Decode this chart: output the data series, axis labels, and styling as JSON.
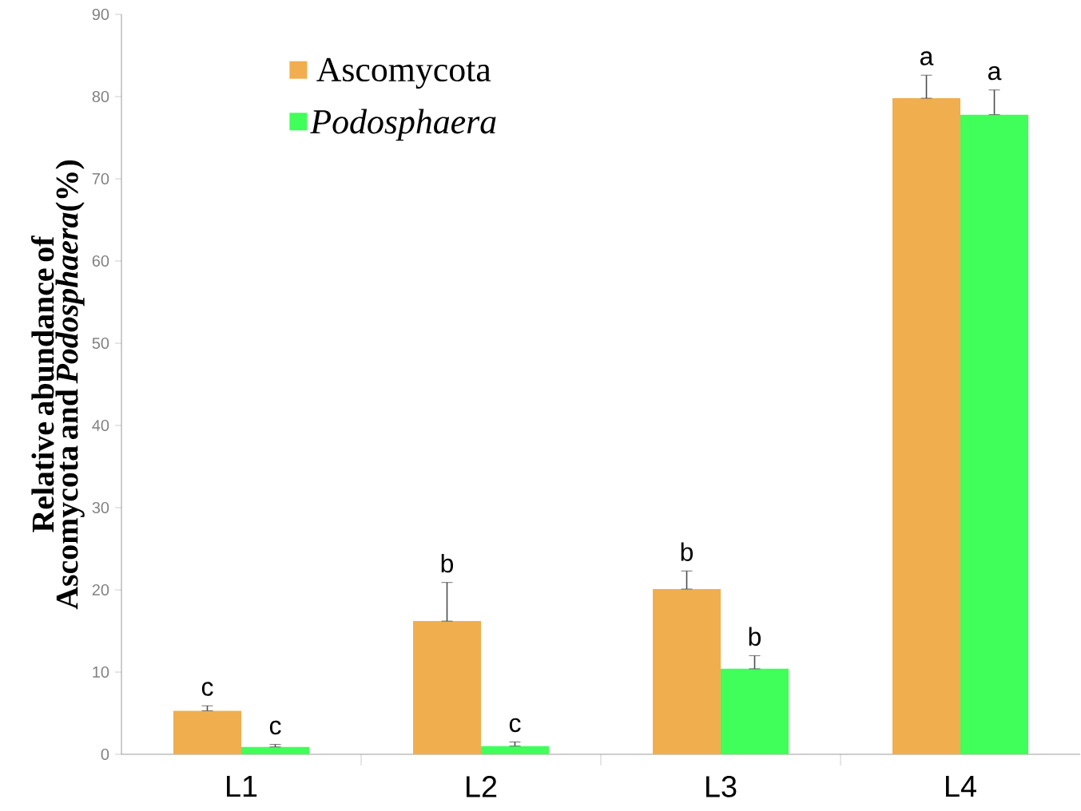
{
  "chart_data": {
    "type": "bar",
    "ylabel": "Relative abundance of Ascomycota and *Podosphaera*(%)",
    "categories": [
      "L1",
      "L2",
      "L3",
      "L4"
    ],
    "series": [
      {
        "name": "Ascomycota",
        "color": "#f0ae4e",
        "values": [
          5.3,
          16.2,
          20.1,
          79.8
        ],
        "errors": [
          [
            5.3,
            5.9
          ],
          [
            16.2,
            20.9
          ],
          [
            20.1,
            22.3
          ],
          [
            79.8,
            82.6
          ]
        ]
      },
      {
        "name": "Podosphaera",
        "color": "#40ff5a",
        "values": [
          0.9,
          1.0,
          10.4,
          77.8
        ],
        "errors": [
          [
            0.9,
            1.2
          ],
          [
            1.0,
            1.5
          ],
          [
            10.4,
            12.0
          ],
          [
            77.8,
            80.8
          ]
        ]
      }
    ],
    "ylim": [
      0,
      90
    ],
    "yticks": [
      0,
      10,
      20,
      30,
      40,
      50,
      60,
      70,
      80,
      90
    ],
    "legend": "top left",
    "grid": false,
    "annotations": [
      "c",
      "c",
      "b",
      "c",
      "b",
      "b",
      "a",
      "a"
    ]
  }
}
